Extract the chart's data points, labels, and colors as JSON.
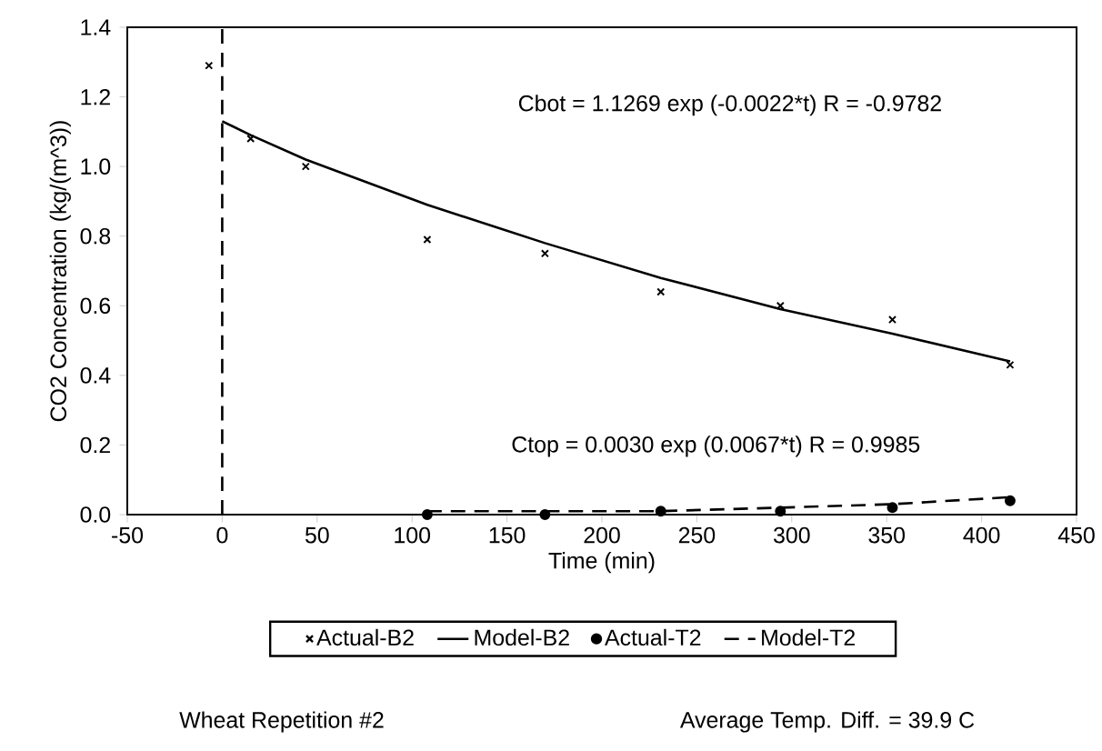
{
  "chart_data": {
    "type": "scatter",
    "xlabel": "Time (min)",
    "ylabel": "CO2 Concentration (kg/(m^3))",
    "xlim": [
      -50,
      450
    ],
    "ylim": [
      0,
      1.4
    ],
    "xticks": [
      -50,
      0,
      50,
      100,
      150,
      200,
      250,
      300,
      350,
      400,
      450
    ],
    "yticks": [
      {
        "value": 0,
        "label": "0.0"
      },
      {
        "value": 0.2,
        "label": "0.2"
      },
      {
        "value": 0.4,
        "label": "0.4"
      },
      {
        "value": 0.6,
        "label": "0.6"
      },
      {
        "value": 0.8,
        "label": "0.8"
      },
      {
        "value": 1.0,
        "label": "1.0"
      },
      {
        "value": 1.2,
        "label": "1.2"
      },
      {
        "value": 1.4,
        "label": "1.4"
      }
    ],
    "grid": false,
    "legend": "bottom",
    "series": [
      {
        "name": "Actual-B2",
        "marker": "cross",
        "color": "#000000",
        "x": [
          -7,
          15,
          44,
          108,
          170,
          231,
          294,
          353,
          415
        ],
        "values": [
          1.29,
          1.08,
          1.0,
          0.79,
          0.75,
          0.64,
          0.6,
          0.56,
          0.43
        ]
      },
      {
        "name": "Model-B2",
        "type": "line",
        "marker": "none",
        "line_style": "solid",
        "color": "#000000",
        "x": [
          0,
          15,
          44,
          108,
          170,
          231,
          294,
          353,
          415
        ],
        "values": [
          1.13,
          1.09,
          1.02,
          0.89,
          0.78,
          0.68,
          0.59,
          0.52,
          0.44
        ]
      },
      {
        "name": "Actual-T2",
        "marker": "circle",
        "color": "#000000",
        "x": [
          108,
          170,
          231,
          294,
          353,
          415
        ],
        "values": [
          0.0,
          0.0,
          0.01,
          0.01,
          0.02,
          0.04
        ]
      },
      {
        "name": "Model-T2",
        "type": "line",
        "marker": "none",
        "line_style": "dashed",
        "color": "#000000",
        "x": [
          108,
          170,
          231,
          294,
          353,
          415
        ],
        "values": [
          0.01,
          0.01,
          0.01,
          0.02,
          0.03,
          0.05
        ]
      }
    ],
    "ref_lines": [
      {
        "axis": "x",
        "value": 0,
        "line_style": "dashed",
        "color": "#000000"
      }
    ],
    "annotations": [
      "Cbot = 1.1269 exp (-0.0022*t)     R = -0.9782",
      "Ctop = 0.0030 exp (0.0067*t)     R = 0.9985",
      "Wheat Repetition #2",
      "Average Temp. Diff. = 39.9 C"
    ]
  }
}
